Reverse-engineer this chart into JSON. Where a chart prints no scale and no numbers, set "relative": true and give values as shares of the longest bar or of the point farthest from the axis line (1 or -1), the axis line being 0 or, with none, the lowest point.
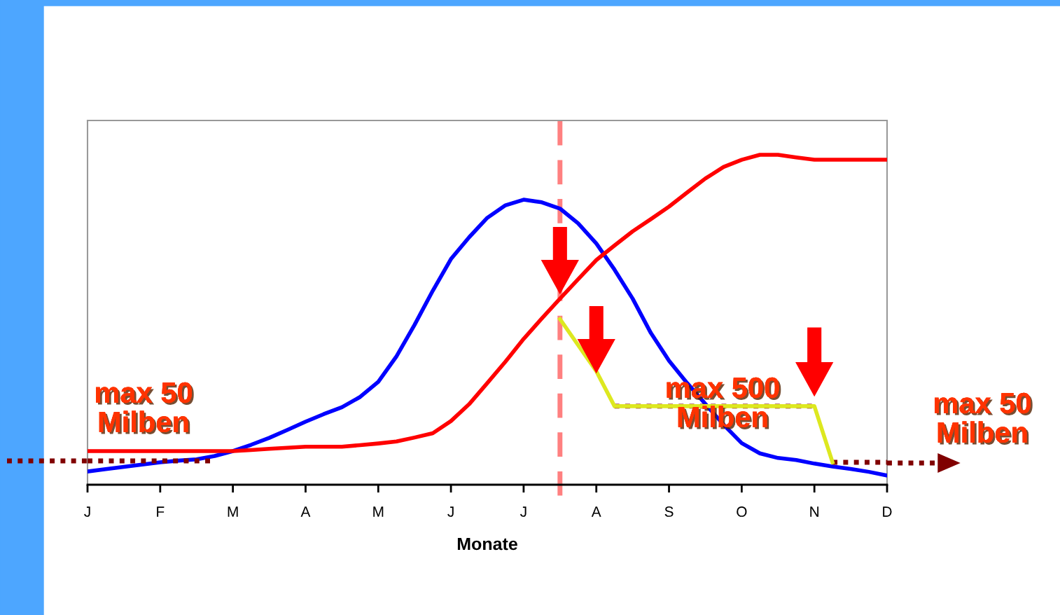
{
  "chart_data": {
    "type": "line",
    "relative": true,
    "xlabel": "Monate",
    "categories": [
      "J",
      null,
      null,
      null,
      "F",
      null,
      null,
      null,
      "M",
      null,
      null,
      null,
      "A",
      null,
      null,
      null,
      "M",
      null,
      null,
      null,
      "J",
      null,
      null,
      null,
      "J",
      null,
      null,
      null,
      "A",
      null,
      null,
      null,
      "S",
      null,
      null,
      null,
      "O",
      null,
      null,
      null,
      "N",
      null,
      null,
      null,
      "D"
    ],
    "grid": false,
    "marker": "none",
    "series": [
      {
        "color": "#0000ff",
        "values": [
          0.04,
          0.047,
          0.054,
          0.061,
          0.068,
          0.073,
          0.077,
          0.087,
          0.102,
          0.121,
          0.142,
          0.166,
          0.191,
          0.214,
          0.235,
          0.266,
          0.312,
          0.389,
          0.485,
          0.588,
          0.684,
          0.75,
          0.809,
          0.847,
          0.864,
          0.856,
          0.837,
          0.792,
          0.731,
          0.652,
          0.564,
          0.46,
          0.376,
          0.308,
          0.245,
          0.182,
          0.126,
          0.095,
          0.081,
          0.075,
          0.064,
          0.055,
          0.048,
          0.039,
          0.028
        ]
      },
      {
        "color": "#ff0000",
        "values": [
          0.102,
          0.102,
          0.102,
          0.102,
          0.102,
          0.102,
          0.102,
          0.102,
          0.102,
          0.105,
          0.109,
          0.112,
          0.115,
          0.115,
          0.115,
          0.12,
          0.125,
          0.131,
          0.143,
          0.156,
          0.193,
          0.244,
          0.308,
          0.373,
          0.442,
          0.504,
          0.564,
          0.623,
          0.681,
          0.725,
          0.768,
          0.805,
          0.843,
          0.886,
          0.928,
          0.963,
          0.985,
          1.0,
          1.0,
          0.992,
          0.985,
          0.985,
          0.985,
          0.985,
          0.985
        ]
      },
      {
        "color": "#800000",
        "line_style": "dotted",
        "values": [
          0.072,
          0.072,
          0.072,
          0.072,
          0.072,
          0.072,
          0.072,
          0.072,
          null,
          null,
          null,
          null,
          null,
          null,
          null,
          null,
          null,
          null,
          null,
          null,
          null,
          null,
          null,
          null,
          null,
          null,
          null,
          null,
          null,
          null,
          null,
          null,
          null,
          null,
          null,
          null,
          null,
          null,
          null,
          null,
          null,
          0.068,
          0.068,
          0.068,
          0.068
        ]
      },
      {
        "color": "#800000",
        "line_style": "dotted",
        "values": [
          null,
          null,
          null,
          null,
          null,
          null,
          null,
          null,
          null,
          null,
          null,
          null,
          null,
          null,
          null,
          null,
          null,
          null,
          null,
          null,
          null,
          null,
          null,
          null,
          null,
          null,
          null,
          null,
          null,
          0.238,
          0.238,
          0.238,
          0.238,
          0.238,
          0.238,
          0.238,
          0.238,
          0.238,
          0.238,
          0.238,
          0.238,
          null,
          null,
          null,
          null
        ]
      },
      {
        "color": "#dde820",
        "values": [
          null,
          null,
          null,
          null,
          null,
          null,
          null,
          null,
          null,
          null,
          null,
          null,
          null,
          null,
          null,
          null,
          null,
          null,
          null,
          null,
          null,
          null,
          null,
          null,
          null,
          null,
          0.502,
          0.423,
          0.344,
          0.238,
          0.238,
          0.238,
          0.238,
          0.238,
          0.238,
          0.238,
          0.238,
          0.238,
          0.238,
          0.238,
          0.238,
          0.068,
          null,
          null,
          null
        ]
      }
    ],
    "annotations": [
      "max 50\nMilben",
      "max 500\nMilben",
      "max 50\nMilben"
    ]
  }
}
